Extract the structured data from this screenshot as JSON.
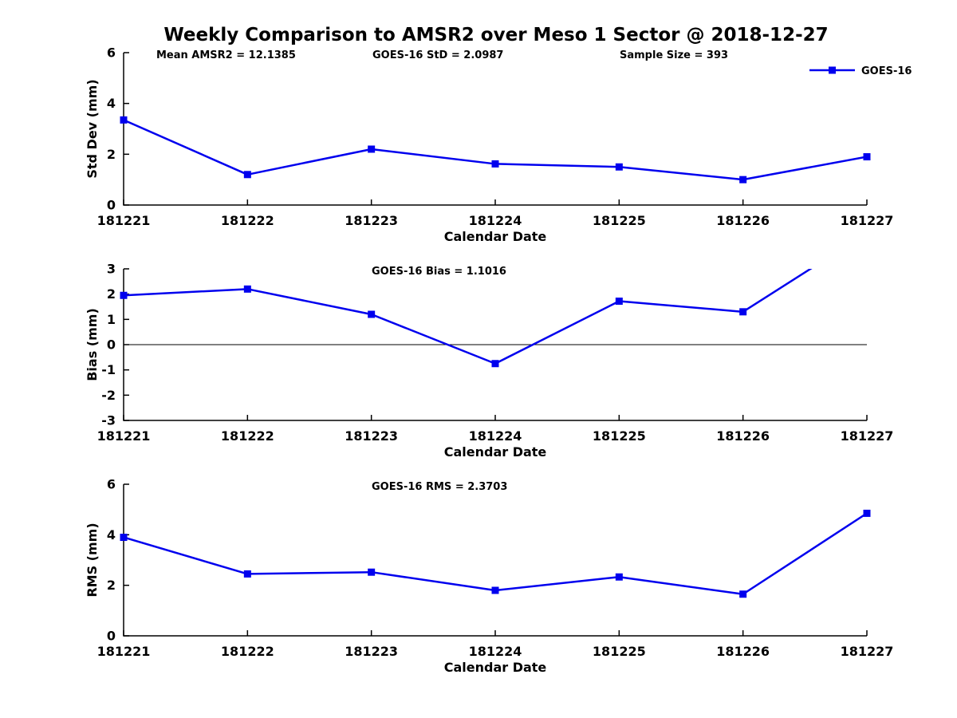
{
  "title": "Weekly Comparison to AMSR2 over Meso 1 Sector @ 2018-12-27",
  "legend": {
    "label": "GOES-16",
    "marker": "square",
    "position": "top-right-outside-first-subplot"
  },
  "colors": {
    "series_line": "#0000EE",
    "axis": "#000000",
    "zero_line": "#000000",
    "background": "#FFFFFF",
    "text": "#000000"
  },
  "chart_data": [
    {
      "type": "line",
      "categories": [
        "181221",
        "181222",
        "181223",
        "181224",
        "181225",
        "181226",
        "181227"
      ],
      "series": [
        {
          "name": "GOES-16",
          "values": [
            3.35,
            1.2,
            2.2,
            1.62,
            1.5,
            1.0,
            1.9
          ]
        }
      ],
      "annotations": [
        "Mean AMSR2 = 12.1385",
        "GOES-16 StD = 2.0987",
        "Sample Size = 393"
      ],
      "xlabel": "Calendar Date",
      "ylabel": "Std Dev (mm)",
      "ylim": [
        0,
        6
      ],
      "yticks": [
        0,
        2,
        4,
        6
      ],
      "grid": false,
      "zero_line": false,
      "show_legend": true
    },
    {
      "type": "line",
      "categories": [
        "181221",
        "181222",
        "181223",
        "181224",
        "181225",
        "181226",
        "181227"
      ],
      "series": [
        {
          "name": "GOES-16",
          "values": [
            1.95,
            2.2,
            1.2,
            -0.75,
            1.72,
            1.3,
            4.42
          ]
        }
      ],
      "annotations": [
        "GOES-16 Bias  = 1.1016"
      ],
      "xlabel": "Calendar Date",
      "ylabel": "Bias (mm)",
      "ylim": [
        -3,
        3
      ],
      "yticks": [
        -3,
        -2,
        -1,
        0,
        1,
        2,
        3
      ],
      "grid": false,
      "zero_line": true,
      "show_legend": false,
      "note": "last point exceeds y-axis maximum and the line is clipped at y=3"
    },
    {
      "type": "line",
      "categories": [
        "181221",
        "181222",
        "181223",
        "181224",
        "181225",
        "181226",
        "181227"
      ],
      "series": [
        {
          "name": "GOES-16",
          "values": [
            3.9,
            2.45,
            2.52,
            1.8,
            2.33,
            1.65,
            4.85
          ]
        }
      ],
      "annotations": [
        "GOES-16 RMS = 2.3703"
      ],
      "xlabel": "Calendar Date",
      "ylabel": "RMS (mm)",
      "ylim": [
        0,
        6
      ],
      "yticks": [
        0,
        2,
        4,
        6
      ],
      "grid": false,
      "zero_line": false,
      "show_legend": false
    }
  ]
}
